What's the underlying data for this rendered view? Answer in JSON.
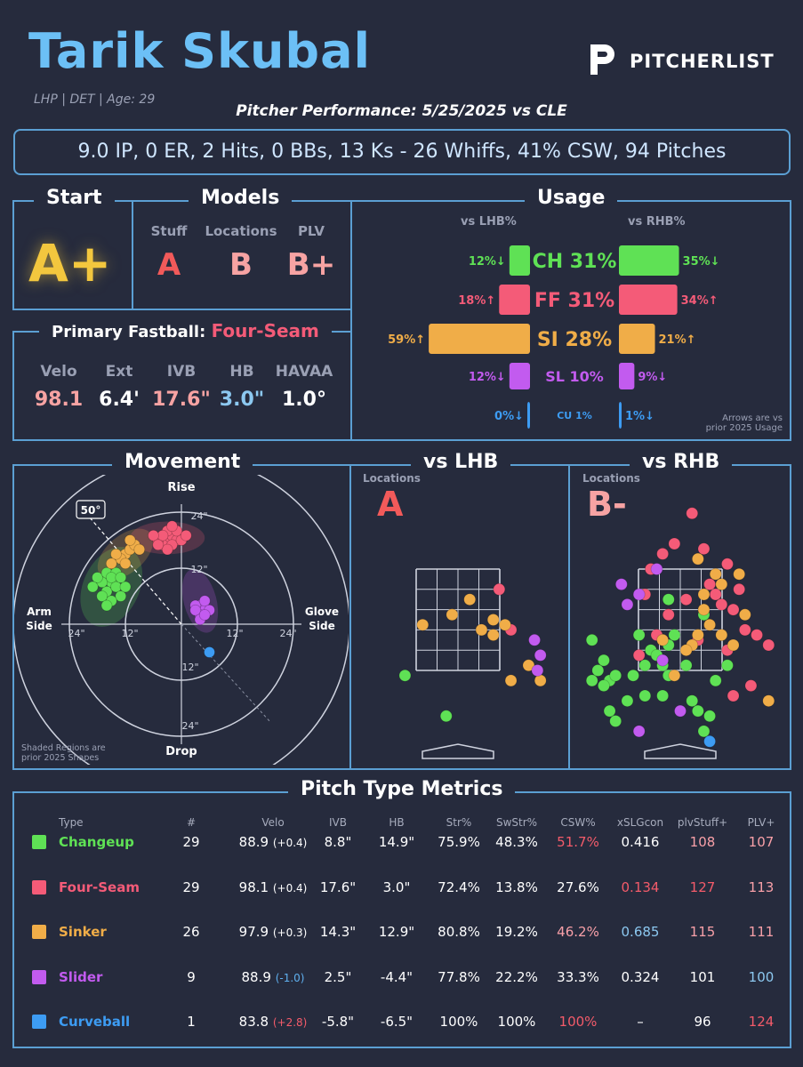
{
  "header": {
    "player_name": "Tarik Skubal",
    "bio": "LHP | DET | Age: 29",
    "performance_title": "Pitcher Performance: 5/25/2025 vs CLE",
    "brand": "PITCHERLIST"
  },
  "stat_line": "9.0 IP, 0 ER, 2 Hits, 0 BBs, 13 Ks - 26 Whiffs, 41% CSW, 94 Pitches",
  "start": {
    "title": "Start",
    "grade": "A+"
  },
  "models": {
    "title": "Models",
    "items": [
      {
        "label": "Stuff",
        "grade": "A"
      },
      {
        "label": "Locations",
        "grade": "B"
      },
      {
        "label": "PLV",
        "grade": "B+"
      }
    ]
  },
  "primary_fastball": {
    "label": "Primary Fastball:",
    "pitch": "Four-Seam",
    "metrics": [
      {
        "label": "Velo",
        "value": "98.1"
      },
      {
        "label": "Ext",
        "value": "6.4'"
      },
      {
        "label": "IVB",
        "value": "17.6\""
      },
      {
        "label": "HB",
        "value": "3.0\""
      },
      {
        "label": "HAVAA",
        "value": "1.0°"
      }
    ]
  },
  "usage": {
    "title": "Usage",
    "lhb_label": "vs LHB%",
    "rhb_label": "vs RHB%",
    "note_line1": "Arrows are vs",
    "note_line2": "prior 2025 Usage",
    "pitches": [
      {
        "code": "CH 31%",
        "lhb": 12,
        "lhb_label": "12%↓",
        "rhb": 35,
        "rhb_label": "35%↓",
        "color": "#5fe155"
      },
      {
        "code": "FF 31%",
        "lhb": 18,
        "lhb_label": "18%↑",
        "rhb": 34,
        "rhb_label": "34%↑",
        "color": "#f45b78"
      },
      {
        "code": "SI 28%",
        "lhb": 59,
        "lhb_label": "59%↑",
        "rhb": 21,
        "rhb_label": "21%↑",
        "color": "#f0ad48"
      },
      {
        "code": "SL 10%",
        "lhb": 12,
        "lhb_label": "12%↓",
        "rhb": 9,
        "rhb_label": "9%↓",
        "color": "#c25bef"
      },
      {
        "code": "CU 1%",
        "lhb": 0,
        "lhb_label": "0%↓",
        "rhb": 1,
        "rhb_label": "1%↓",
        "color": "#3d9cf3"
      }
    ]
  },
  "movement": {
    "title": "Movement",
    "labels": {
      "rise": "Rise",
      "drop": "Drop",
      "arm1": "Arm",
      "arm2": "Side",
      "glove1": "Glove",
      "glove2": "Side",
      "angle": "50°",
      "r24": "24\"",
      "r12": "12\""
    },
    "note_line1": "Shaded Regions are",
    "note_line2": "prior 2025 Shapes"
  },
  "lhb": {
    "title": "vs LHB",
    "loc_label": "Locations",
    "grade": "A"
  },
  "rhb": {
    "title": "vs RHB",
    "loc_label": "Locations",
    "grade": "B-"
  },
  "metrics": {
    "title": "Pitch Type Metrics",
    "headers": [
      "Type",
      "#",
      "Velo",
      "IVB",
      "HB",
      "Str%",
      "SwStr%",
      "CSW%",
      "xSLGcon",
      "plvStuff+",
      "PLV+"
    ],
    "rows": [
      {
        "type": "Changeup",
        "color": "#5fe155",
        "n": "29",
        "velo": "88.9",
        "velo_diff": "(+0.4)",
        "velo_diff_color": "#ffffff",
        "ivb": "8.8\"",
        "hb": "14.9\"",
        "str": "75.9%",
        "swstr": "48.3%",
        "csw": "51.7%",
        "csw_color": "#f45b6a",
        "xslg": "0.416",
        "xslg_color": "#ffffff",
        "stuff": "108",
        "stuff_color": "#f8a0a8",
        "plv": "107",
        "plv_color": "#f8a0a8"
      },
      {
        "type": "Four-Seam",
        "color": "#f45b78",
        "n": "29",
        "velo": "98.1",
        "velo_diff": "(+0.4)",
        "velo_diff_color": "#ffffff",
        "ivb": "17.6\"",
        "hb": "3.0\"",
        "str": "72.4%",
        "swstr": "13.8%",
        "csw": "27.6%",
        "csw_color": "#ffffff",
        "xslg": "0.134",
        "xslg_color": "#f45b6a",
        "stuff": "127",
        "stuff_color": "#f45b6a",
        "plv": "113",
        "plv_color": "#f8a0a8"
      },
      {
        "type": "Sinker",
        "color": "#f0ad48",
        "n": "26",
        "velo": "97.9",
        "velo_diff": "(+0.3)",
        "velo_diff_color": "#ffffff",
        "ivb": "14.3\"",
        "hb": "12.9\"",
        "str": "80.8%",
        "swstr": "19.2%",
        "csw": "46.2%",
        "csw_color": "#f8a0a8",
        "xslg": "0.685",
        "xslg_color": "#8cc8f0",
        "stuff": "115",
        "stuff_color": "#f8a0a8",
        "plv": "111",
        "plv_color": "#f8a0a8"
      },
      {
        "type": "Slider",
        "color": "#c25bef",
        "n": "9",
        "velo": "88.9",
        "velo_diff": "(-1.0)",
        "velo_diff_color": "#5fb0ef",
        "ivb": "2.5\"",
        "hb": "-4.4\"",
        "str": "77.8%",
        "swstr": "22.2%",
        "csw": "33.3%",
        "csw_color": "#ffffff",
        "xslg": "0.324",
        "xslg_color": "#ffffff",
        "stuff": "101",
        "stuff_color": "#ffffff",
        "plv": "100",
        "plv_color": "#8cc8f0"
      },
      {
        "type": "Curveball",
        "color": "#3d9cf3",
        "n": "1",
        "velo": "83.8",
        "velo_diff": "(+2.8)",
        "velo_diff_color": "#f45b6a",
        "ivb": "-5.8\"",
        "hb": "-6.5\"",
        "str": "100%",
        "swstr": "100%",
        "csw": "100%",
        "csw_color": "#f45b6a",
        "xslg": "–",
        "xslg_color": "#ffffff",
        "stuff": "96",
        "stuff_color": "#ffffff",
        "plv": "124",
        "plv_color": "#f45b6a"
      }
    ]
  },
  "chart_data": [
    {
      "type": "bar",
      "title": "Usage",
      "categories": [
        "CH",
        "FF",
        "SI",
        "SL",
        "CU"
      ],
      "series": [
        {
          "name": "vs LHB%",
          "values": [
            12,
            18,
            59,
            12,
            0
          ]
        },
        {
          "name": "vs RHB%",
          "values": [
            35,
            34,
            21,
            9,
            1
          ]
        }
      ]
    },
    {
      "type": "scatter",
      "title": "Movement",
      "xlabel": "",
      "ylabel": "",
      "xlim": [
        -30,
        30
      ],
      "ylim": [
        -30,
        30
      ],
      "series": [
        {
          "name": "CH",
          "color": "#5fe155",
          "points": [
            [
              -15,
              9
            ],
            [
              -16,
              7
            ],
            [
              -14,
              8
            ],
            [
              -17,
              9
            ],
            [
              -13,
              6
            ],
            [
              -15,
              5
            ],
            [
              -18,
              10
            ],
            [
              -16,
              11
            ],
            [
              -14,
              11
            ],
            [
              -17,
              6
            ],
            [
              -15,
              10
            ],
            [
              -12,
              8
            ],
            [
              -16,
              4
            ],
            [
              -19,
              8
            ],
            [
              -13,
              10
            ]
          ]
        },
        {
          "name": "FF",
          "color": "#f45b78",
          "points": [
            [
              -3,
              18
            ],
            [
              -2,
              19
            ],
            [
              -4,
              17
            ],
            [
              -1,
              18
            ],
            [
              -3,
              20
            ],
            [
              -5,
              18
            ],
            [
              -2,
              17
            ],
            [
              0,
              18
            ],
            [
              -4,
              19
            ],
            [
              -1,
              20
            ],
            [
              -3,
              16
            ],
            [
              -6,
              19
            ],
            [
              1,
              19
            ],
            [
              -2,
              21
            ],
            [
              -5,
              17
            ]
          ]
        },
        {
          "name": "SI",
          "color": "#f0ad48",
          "points": [
            [
              -12,
              15
            ],
            [
              -11,
              16
            ],
            [
              -13,
              14
            ],
            [
              -10,
              17
            ],
            [
              -14,
              15
            ],
            [
              -12,
              13
            ],
            [
              -11,
              18
            ],
            [
              -15,
              13
            ],
            [
              -9,
              16
            ]
          ]
        },
        {
          "name": "SL",
          "color": "#c25bef",
          "points": [
            [
              4,
              4
            ],
            [
              5,
              3
            ],
            [
              3,
              4
            ],
            [
              4,
              2
            ],
            [
              5,
              5
            ],
            [
              3,
              3
            ],
            [
              6,
              3
            ],
            [
              4,
              1
            ],
            [
              5,
              2
            ]
          ]
        },
        {
          "name": "CU",
          "color": "#3d9cf3",
          "points": [
            [
              6,
              -6
            ]
          ]
        }
      ]
    },
    {
      "type": "scatter",
      "title": "vs LHB",
      "series": [
        {
          "name": "CH",
          "color": "#5fe155",
          "points": [
            [
              -0.9,
              1.4
            ],
            [
              -0.2,
              0.6
            ]
          ]
        },
        {
          "name": "FF",
          "color": "#f45b78",
          "points": [
            [
              0.7,
              3.1
            ],
            [
              0.9,
              2.3
            ]
          ]
        },
        {
          "name": "SI",
          "color": "#f0ad48",
          "points": [
            [
              -2.8,
              3.2
            ],
            [
              -0.6,
              2.4
            ],
            [
              0.2,
              2.9
            ],
            [
              -0.1,
              2.6
            ],
            [
              0.4,
              2.3
            ],
            [
              0.6,
              2.5
            ],
            [
              0.8,
              2.4
            ],
            [
              1.2,
              1.6
            ],
            [
              1.4,
              1.3
            ],
            [
              0.9,
              1.3
            ],
            [
              0.6,
              2.2
            ]
          ]
        },
        {
          "name": "SL",
          "color": "#c25bef",
          "points": [
            [
              1.3,
              2.1
            ],
            [
              1.4,
              1.8
            ],
            [
              1.35,
              1.5
            ]
          ]
        }
      ]
    },
    {
      "type": "scatter",
      "title": "vs RHB",
      "series": [
        {
          "name": "CH",
          "color": "#5fe155",
          "points": [
            [
              -1.5,
              2.1
            ],
            [
              -1.3,
              1.7
            ],
            [
              -1.4,
              1.5
            ],
            [
              -1.2,
              1.3
            ],
            [
              -1.1,
              1.4
            ],
            [
              -1.5,
              1.3
            ],
            [
              -1.3,
              1.2
            ],
            [
              -0.8,
              1.4
            ],
            [
              -0.6,
              1.6
            ],
            [
              -0.5,
              1.9
            ],
            [
              -0.3,
              1.6
            ],
            [
              -0.2,
              1.4
            ],
            [
              -0.4,
              1.8
            ],
            [
              -0.1,
              2.2
            ],
            [
              -0.2,
              2.0
            ],
            [
              0.1,
              1.6
            ],
            [
              -0.7,
              2.2
            ],
            [
              -0.3,
              1.0
            ],
            [
              0.2,
              0.9
            ],
            [
              0.3,
              0.7
            ],
            [
              0.5,
              0.6
            ],
            [
              0.4,
              0.3
            ],
            [
              -0.6,
              1.0
            ],
            [
              -0.9,
              0.9
            ],
            [
              -1.1,
              0.5
            ],
            [
              -1.2,
              0.7
            ],
            [
              0.6,
              1.3
            ],
            [
              0.8,
              1.6
            ],
            [
              0.4,
              2.6
            ],
            [
              -0.2,
              2.9
            ],
            [
              -2.9,
              1.5
            ]
          ]
        },
        {
          "name": "FF",
          "color": "#f45b78",
          "points": [
            [
              0.2,
              4.6
            ],
            [
              -0.1,
              4.0
            ],
            [
              0.4,
              3.9
            ],
            [
              0.8,
              3.6
            ],
            [
              -0.5,
              3.5
            ],
            [
              0.5,
              3.2
            ],
            [
              0.6,
              3.0
            ],
            [
              0.7,
              2.8
            ],
            [
              0.9,
              2.7
            ],
            [
              1.0,
              3.1
            ],
            [
              0.1,
              2.9
            ],
            [
              -0.6,
              3.0
            ],
            [
              -0.2,
              2.6
            ],
            [
              -0.4,
              2.2
            ],
            [
              0.3,
              2.1
            ],
            [
              1.1,
              2.3
            ],
            [
              1.3,
              2.2
            ],
            [
              1.5,
              2.0
            ],
            [
              -0.7,
              1.8
            ],
            [
              0.8,
              1.9
            ],
            [
              1.2,
              1.2
            ],
            [
              0.9,
              1.0
            ],
            [
              -0.3,
              3.8
            ]
          ]
        },
        {
          "name": "SI",
          "color": "#f0ad48",
          "points": [
            [
              0.3,
              3.7
            ],
            [
              0.6,
              3.4
            ],
            [
              0.7,
              3.2
            ],
            [
              1.0,
              3.4
            ],
            [
              0.4,
              2.7
            ],
            [
              0.5,
              2.4
            ],
            [
              0.3,
              2.2
            ],
            [
              0.2,
              2.0
            ],
            [
              0.1,
              1.9
            ],
            [
              1.1,
              2.6
            ],
            [
              0.7,
              2.2
            ],
            [
              0.9,
              2.0
            ],
            [
              -0.1,
              1.4
            ],
            [
              -0.3,
              2.1
            ],
            [
              2.4,
              3.2
            ],
            [
              1.5,
              0.9
            ],
            [
              0.4,
              3.0
            ]
          ]
        },
        {
          "name": "SL",
          "color": "#c25bef",
          "points": [
            [
              -0.7,
              3.0
            ],
            [
              -1.0,
              3.2
            ],
            [
              -0.4,
              3.5
            ],
            [
              -0.9,
              2.8
            ],
            [
              -0.3,
              1.7
            ],
            [
              -0.7,
              0.3
            ],
            [
              0.0,
              0.7
            ]
          ]
        },
        {
          "name": "CU",
          "color": "#3d9cf3",
          "points": [
            [
              0.5,
              0.1
            ]
          ]
        }
      ]
    }
  ]
}
